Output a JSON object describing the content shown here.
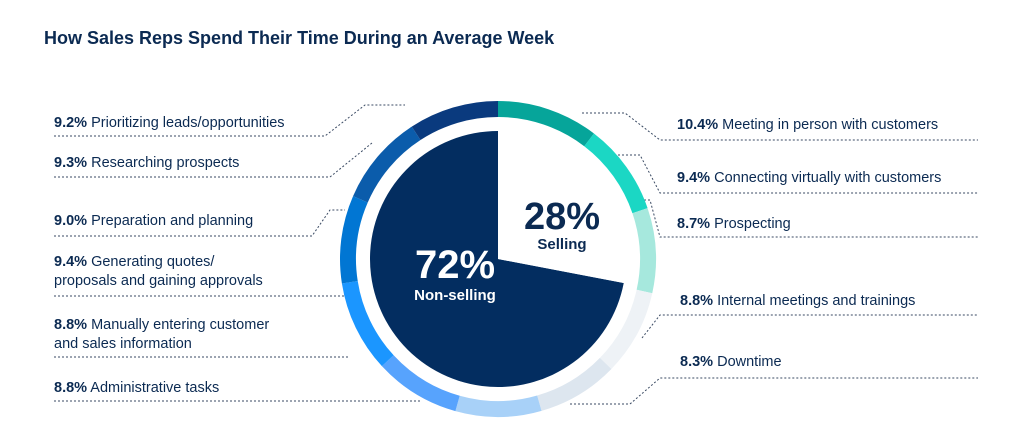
{
  "chart_data": {
    "type": "pie",
    "title": "How Sales Reps Spend Their Time During an Average Week",
    "inner": [
      {
        "name": "Non-selling",
        "value": 72,
        "label": "72%",
        "color": "#032d60"
      },
      {
        "name": "Selling",
        "value": 28,
        "label": "28%",
        "color": "#ffffff"
      }
    ],
    "selling": [
      {
        "value": 10.4,
        "pct_label": "10.4%",
        "text": "Meeting in person with customers",
        "color": "#06a59a"
      },
      {
        "value": 9.4,
        "pct_label": "9.4%",
        "text": "Connecting virtually with customers",
        "color": "#1bd7c4"
      },
      {
        "value": 8.7,
        "pct_label": "8.7%",
        "text": "Prospecting",
        "color": "#a6e8dd"
      }
    ],
    "non_selling": [
      {
        "value": 9.2,
        "pct_label": "9.2%",
        "text": "Prioritizing leads/opportunities",
        "color": "#0a3a7e"
      },
      {
        "value": 9.3,
        "pct_label": "9.3%",
        "text": "Researching prospects",
        "color": "#0b5cab"
      },
      {
        "value": 9.0,
        "pct_label": "9.0%",
        "text": "Preparation and planning",
        "color": "#0176d3"
      },
      {
        "value": 9.4,
        "pct_label": "9.4%",
        "text": "Generating quotes/\nproposals and gaining approvals",
        "color": "#1b96ff"
      },
      {
        "value": 8.8,
        "pct_label": "8.8%",
        "text": "Manually entering customer\nand sales information",
        "color": "#57a3fd"
      },
      {
        "value": 8.8,
        "pct_label": "8.8%",
        "text": "Administrative tasks",
        "color": "#a8d1f8"
      },
      {
        "value": 8.3,
        "pct_label": "8.3%",
        "text": "Downtime",
        "color": "#dde6ef"
      },
      {
        "value": 8.8,
        "pct_label": "8.8%",
        "text": "Internal meetings and trainings",
        "color": "#eef2f6"
      }
    ]
  }
}
